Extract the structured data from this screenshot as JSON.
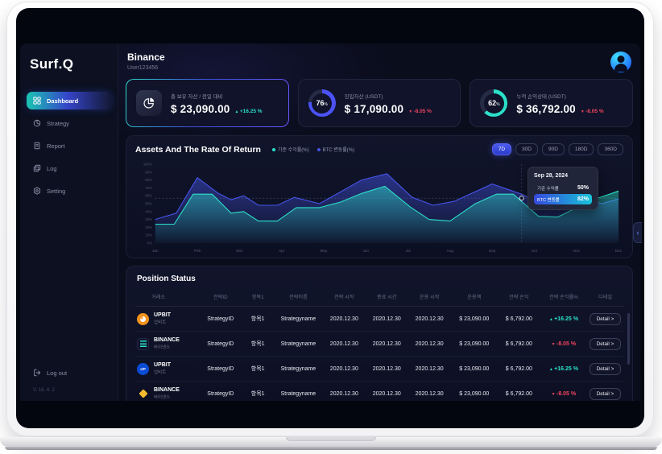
{
  "sidebar": {
    "logo": "Surf.Q",
    "items": [
      {
        "label": "Dashboard",
        "icon": "dashboard-grid-icon",
        "active": true
      },
      {
        "label": "Strategy",
        "icon": "strategy-pie-icon",
        "active": false
      },
      {
        "label": "Report",
        "icon": "report-doc-icon",
        "active": false
      },
      {
        "label": "Log",
        "icon": "log-copy-icon",
        "active": false
      },
      {
        "label": "Setting",
        "icon": "setting-gear-icon",
        "active": false
      }
    ],
    "logout_label": "Log out",
    "version": "V. 16. 4. 2"
  },
  "header": {
    "title": "Binance",
    "subtitle": "User123456"
  },
  "stat_cards": [
    {
      "label": "총 보유 자산 / 전일 대비",
      "value": "$ 23,090.00",
      "change": "+16.25 %",
      "direction": "up",
      "icon": "pie-chart-icon"
    },
    {
      "label": "진입자산 (USDT)",
      "value": "$ 17,090.00",
      "change": "-8.05 %",
      "direction": "down",
      "percent": 76,
      "unit": "%",
      "ring_color": "#4b52f8",
      "track_color": "#262b45"
    },
    {
      "label": "누적 손익상태 (USDT)",
      "value": "$ 36,792.00",
      "change": "-8.05 %",
      "direction": "down",
      "percent": 62,
      "unit": "%",
      "ring_color": "#2be0c8",
      "track_color": "#262b45"
    }
  ],
  "chart": {
    "title": "Assets And The Rate Of Return",
    "legend": [
      {
        "label": "기준 수익률(%)",
        "color": "#2be0c8"
      },
      {
        "label": "BTC 변동률(%)",
        "color": "#4554e8"
      }
    ],
    "ranges": [
      "7D",
      "30D",
      "90D",
      "180D",
      "360D"
    ],
    "active_range": "7D",
    "tooltip": {
      "date": "Sep 28, 2024",
      "rows": [
        {
          "label": "기준 수익률",
          "value": "50%",
          "highlight": false
        },
        {
          "label": "BTC 변동률",
          "value": "82%",
          "highlight": true
        }
      ]
    }
  },
  "chart_data": {
    "type": "area",
    "x_labels": [
      "Jan",
      "Feb",
      "Mar",
      "Apr",
      "May",
      "Jun",
      "Jul",
      "Aug",
      "Sep",
      "Oct",
      "Nov",
      "Dec"
    ],
    "ylim": [
      0,
      100
    ],
    "y_tick_step": 10,
    "series": [
      {
        "name": "BTC 변동률(%)",
        "color": "#4554e8",
        "points": [
          [
            0,
            30
          ],
          [
            0.5,
            38
          ],
          [
            1,
            83
          ],
          [
            1.5,
            63
          ],
          [
            1.8,
            55
          ],
          [
            2.1,
            60
          ],
          [
            2.45,
            48
          ],
          [
            2.9,
            48
          ],
          [
            3.3,
            58
          ],
          [
            3.9,
            50
          ],
          [
            4.5,
            68
          ],
          [
            4.9,
            80
          ],
          [
            5.5,
            88
          ],
          [
            6.1,
            58
          ],
          [
            6.6,
            48
          ],
          [
            7.1,
            53
          ],
          [
            8,
            75
          ],
          [
            8.7,
            62
          ],
          [
            9.1,
            52
          ],
          [
            9.6,
            42
          ],
          [
            10.1,
            58
          ],
          [
            10.6,
            50
          ],
          [
            11,
            56
          ]
        ]
      },
      {
        "name": "기준 수익률(%)",
        "color": "#2be0c8",
        "points": [
          [
            0,
            24
          ],
          [
            0.45,
            24
          ],
          [
            0.9,
            62
          ],
          [
            1.35,
            62
          ],
          [
            1.8,
            38
          ],
          [
            2.1,
            40
          ],
          [
            2.45,
            28
          ],
          [
            2.9,
            28
          ],
          [
            3.35,
            45
          ],
          [
            3.9,
            45
          ],
          [
            4.4,
            52
          ],
          [
            4.9,
            63
          ],
          [
            5.45,
            72
          ],
          [
            6.05,
            46
          ],
          [
            6.5,
            30
          ],
          [
            7,
            28
          ],
          [
            7.6,
            50
          ],
          [
            8.1,
            62
          ],
          [
            8.5,
            62
          ],
          [
            9.1,
            34
          ],
          [
            9.55,
            33
          ],
          [
            10.4,
            55
          ],
          [
            11,
            66
          ]
        ]
      }
    ],
    "marker": {
      "x": 8.7,
      "y": 57
    }
  },
  "positions": {
    "title": "Position Status",
    "columns": [
      "거래소",
      "전략ID",
      "항목1",
      "전략이름",
      "전략 시작",
      "종료 시간",
      "운용 시작",
      "운용액",
      "전략 손익",
      "전략 손익률%",
      "디테일"
    ],
    "rows": [
      {
        "exchange": "UPBIT",
        "exchange_kr": "업비트",
        "icon": "upbit-coin-icon",
        "icon_text": "",
        "strategy_id": "StrategyID",
        "item": "항목1",
        "name": "Strategyname",
        "start": "2020.12.30",
        "end": "2020.12.30",
        "op_start": "2020.12.30",
        "amount": "$ 23,090.00",
        "pnl": "$ 6,792.00",
        "pnl_pct": "+16.25 %",
        "direction": "up",
        "detail": "Detail >"
      },
      {
        "exchange": "BINANCE",
        "exchange_kr": "바이낸스",
        "icon": "binance-lines-icon",
        "icon_text": "",
        "strategy_id": "StrategyID",
        "item": "항목1",
        "name": "Strategyname",
        "start": "2020.12.30",
        "end": "2020.12.30",
        "op_start": "2020.12.30",
        "amount": "$ 23,090.00",
        "pnl": "$ 6,792.00",
        "pnl_pct": "-8.05 %",
        "direction": "down",
        "detail": "Detail >"
      },
      {
        "exchange": "UPBIT",
        "exchange_kr": "업비트",
        "icon": "upbit-up-icon",
        "icon_text": "UP",
        "strategy_id": "StrategyID",
        "item": "항목1",
        "name": "Strategyname",
        "start": "2020.12.30",
        "end": "2020.12.30",
        "op_start": "2020.12.30",
        "amount": "$ 23,090.00",
        "pnl": "$ 6,792.00",
        "pnl_pct": "+16.25 %",
        "direction": "up",
        "detail": "Detail >"
      },
      {
        "exchange": "BINANCE",
        "exchange_kr": "바이낸스",
        "icon": "binance-diamond-icon",
        "icon_text": "",
        "strategy_id": "StrategyID",
        "item": "항목1",
        "name": "Strategyname",
        "start": "2020.12.30",
        "end": "2020.12.30",
        "op_start": "2020.12.30",
        "amount": "$ 23,090.00",
        "pnl": "$ 6,792.00",
        "pnl_pct": "-8.05 %",
        "direction": "down",
        "detail": "Detail >"
      }
    ]
  }
}
